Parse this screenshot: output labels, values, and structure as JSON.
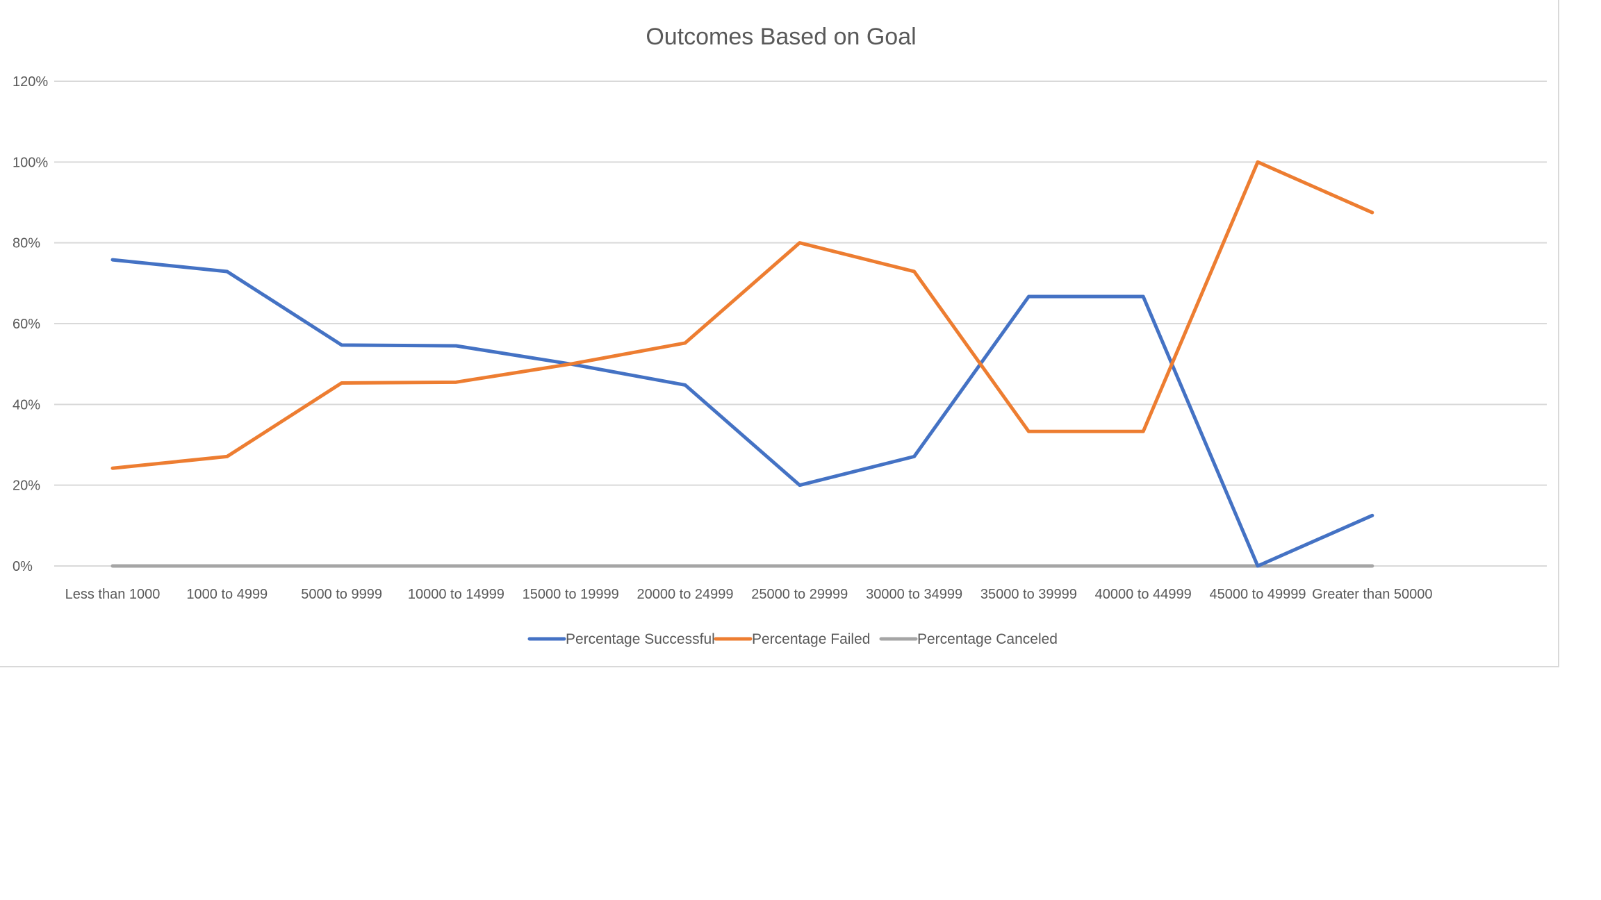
{
  "chart_data": {
    "type": "line",
    "title": "Outcomes Based on Goal",
    "xlabel": "",
    "ylabel": "",
    "categories": [
      "Less than 1000",
      "1000 to 4999",
      "5000 to 9999",
      "10000 to 14999",
      "15000 to 19999",
      "20000 to 24999",
      "25000 to 29999",
      "30000 to 34999",
      "35000 to 39999",
      "40000 to 44999",
      "45000 to 49999",
      "Greater than 50000"
    ],
    "yticks": [
      "0%",
      "20%",
      "40%",
      "60%",
      "80%",
      "100%",
      "120%"
    ],
    "ylim": [
      0,
      1.2
    ],
    "grid": true,
    "legend_position": "bottom",
    "series": [
      {
        "name": "Percentage Successful",
        "color": "#4472c4",
        "values": [
          0.758,
          0.729,
          0.547,
          0.545,
          0.5,
          0.448,
          0.2,
          0.271,
          0.667,
          0.667,
          0.0,
          0.125
        ]
      },
      {
        "name": "Percentage Failed",
        "color": "#ed7d31",
        "values": [
          0.242,
          0.271,
          0.453,
          0.455,
          0.5,
          0.552,
          0.8,
          0.729,
          0.333,
          0.333,
          1.0,
          0.875
        ]
      },
      {
        "name": "Percentage Canceled",
        "color": "#a5a5a5",
        "values": [
          0,
          0,
          0,
          0,
          0,
          0,
          0,
          0,
          0,
          0,
          0,
          0
        ]
      }
    ]
  }
}
